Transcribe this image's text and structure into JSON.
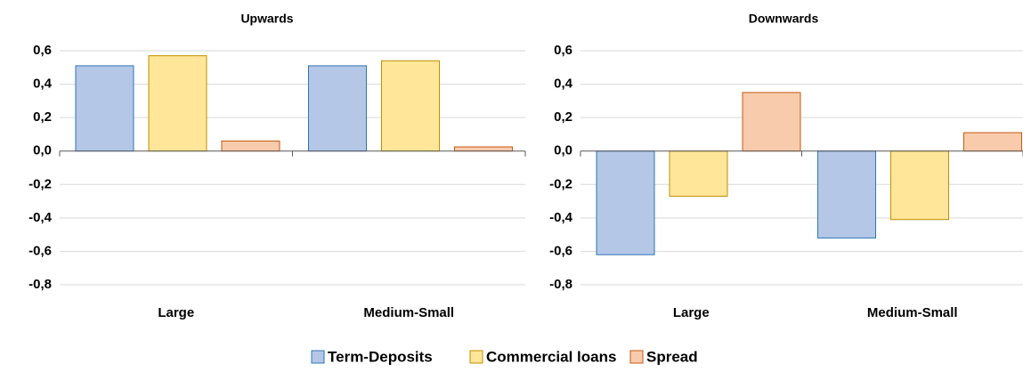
{
  "chart_data": [
    {
      "type": "bar",
      "title": "Upwards",
      "categories": [
        "Large",
        "Medium-Small"
      ],
      "series": [
        {
          "name": "Term-Deposits",
          "color": "#b4c7e7",
          "values": [
            0.51,
            0.51
          ]
        },
        {
          "name": "Commercial loans",
          "color": "#ffe699",
          "values": [
            0.57,
            0.54
          ]
        },
        {
          "name": "Spread",
          "color": "#f8cbad",
          "values": [
            0.06,
            0.025
          ]
        }
      ],
      "ylim": [
        -0.8,
        0.6
      ],
      "yticks": [
        {
          "value": 0.6,
          "label": "0,6"
        },
        {
          "value": 0.4,
          "label": "0,4"
        },
        {
          "value": 0.2,
          "label": "0,2"
        },
        {
          "value": 0,
          "label": "0,0"
        },
        {
          "value": -0.2,
          "label": "-0,2"
        },
        {
          "value": -0.4,
          "label": "-0,4"
        },
        {
          "value": -0.6,
          "label": "-0,6"
        },
        {
          "value": -0.8,
          "label": "-0,8"
        }
      ],
      "grid": true
    },
    {
      "type": "bar",
      "title": "Downwards",
      "categories": [
        "Large",
        "Medium-Small"
      ],
      "series": [
        {
          "name": "Term-Deposits",
          "color": "#b4c7e7",
          "values": [
            -0.62,
            -0.52
          ]
        },
        {
          "name": "Commercial loans",
          "color": "#ffe699",
          "values": [
            -0.27,
            -0.41
          ]
        },
        {
          "name": "Spread",
          "color": "#f8cbad",
          "values": [
            0.35,
            0.11
          ]
        }
      ],
      "ylim": [
        -0.8,
        0.6
      ],
      "yticks": [
        {
          "value": 0.6,
          "label": "0,6"
        },
        {
          "value": 0.4,
          "label": "0,4"
        },
        {
          "value": 0.2,
          "label": "0,2"
        },
        {
          "value": 0,
          "label": "0,0"
        },
        {
          "value": -0.2,
          "label": "-0,2"
        },
        {
          "value": -0.4,
          "label": "-0,4"
        },
        {
          "value": -0.6,
          "label": "-0,6"
        },
        {
          "value": -0.8,
          "label": "-0,8"
        }
      ],
      "grid": true
    }
  ]
}
